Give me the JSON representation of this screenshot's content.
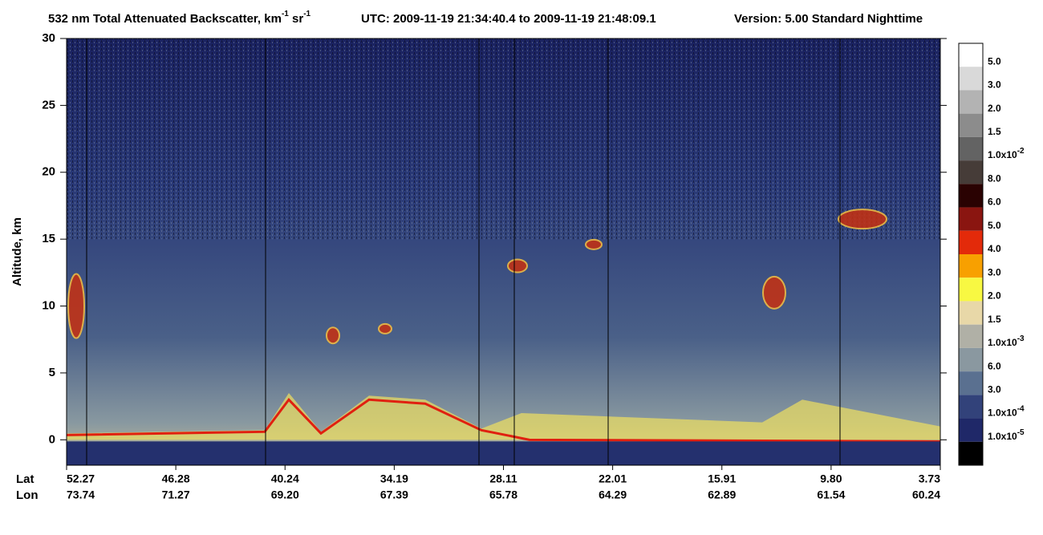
{
  "chart_data": {
    "type": "heatmap",
    "title": {
      "product": "532 nm Total Attenuated Backscatter, km",
      "unit_exp1": "-1",
      "unit2": " sr",
      "unit_exp2": "-1",
      "utc": "UTC:  2009-11-19 21:34:40.4  to  2009-11-19 21:48:09.1",
      "version": "Version: 5.00  Standard  Nighttime"
    },
    "ylabel": "Altitude, km",
    "ylim": [
      -1.9,
      30
    ],
    "yticks": [
      0,
      5,
      10,
      15,
      20,
      25,
      30
    ],
    "x_row_labels": [
      "Lat",
      "Lon"
    ],
    "lat": [
      "52.27",
      "46.28",
      "40.24",
      "34.19",
      "28.11",
      "22.01",
      "15.91",
      "9.80",
      "3.73"
    ],
    "lon": [
      "73.74",
      "71.27",
      "69.20",
      "67.39",
      "65.78",
      "64.29",
      "62.89",
      "61.54",
      "60.24"
    ],
    "colorbar": {
      "colors": [
        "#ffffff",
        "#d9d9d9",
        "#b3b3b3",
        "#8c8c8c",
        "#636363",
        "#463c38",
        "#2a0202",
        "#8a1510",
        "#e32a0a",
        "#f8a000",
        "#f8f842",
        "#e8d8a8",
        "#b0b0a6",
        "#8a98a0",
        "#5a7090",
        "#32427a",
        "#1f2868",
        "#000000"
      ],
      "labels": [
        "5.0",
        "3.0",
        "2.0",
        "1.5",
        {
          "base": "1.0x10",
          "exp": "-2"
        },
        "8.0",
        "6.0",
        "5.0",
        "4.0",
        "3.0",
        "2.0",
        "1.5",
        {
          "base": "1.0x10",
          "exp": "-3"
        },
        "6.0",
        "3.0",
        {
          "base": "1.0x10",
          "exp": "-4"
        },
        {
          "base": "1.0x10",
          "exp": "-5"
        }
      ]
    }
  }
}
